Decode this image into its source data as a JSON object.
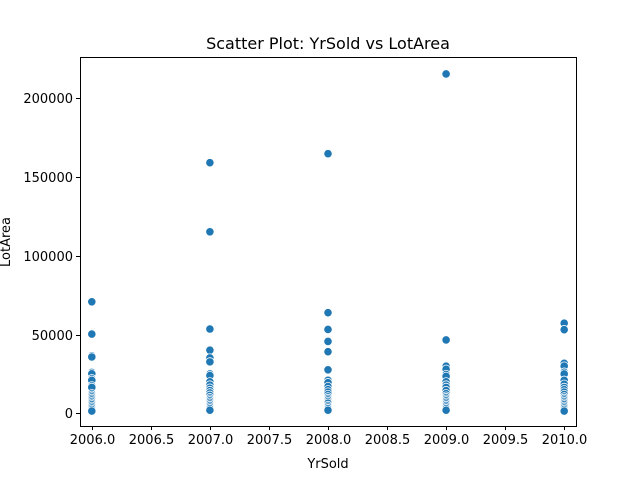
{
  "chart_data": {
    "type": "scatter",
    "title": "Scatter Plot: YrSold vs LotArea",
    "xlabel": "YrSold",
    "ylabel": "LotArea",
    "xlim": [
      2005.9,
      2010.1
    ],
    "ylim": [
      -8000,
      226000
    ],
    "x_ticks": [
      2006.0,
      2006.5,
      2007.0,
      2007.5,
      2008.0,
      2008.5,
      2009.0,
      2009.5,
      2010.0
    ],
    "x_tick_labels": [
      "2006.0",
      "2006.5",
      "2007.0",
      "2007.5",
      "2008.0",
      "2008.5",
      "2009.0",
      "2009.5",
      "2010.0"
    ],
    "y_ticks": [
      0,
      50000,
      100000,
      150000,
      200000
    ],
    "y_tick_labels": [
      "0",
      "50000",
      "100000",
      "150000",
      "200000"
    ],
    "grid": false,
    "legend": "none",
    "marker_color": "#1f77b4",
    "points": [
      {
        "x": 2006,
        "y": 70761
      },
      {
        "x": 2006,
        "y": 50271
      },
      {
        "x": 2006,
        "y": 36500
      },
      {
        "x": 2006,
        "y": 35760
      },
      {
        "x": 2006,
        "y": 26000
      },
      {
        "x": 2006,
        "y": 25095
      },
      {
        "x": 2006,
        "y": 22000
      },
      {
        "x": 2006,
        "y": 21000
      },
      {
        "x": 2006,
        "y": 17500
      },
      {
        "x": 2006,
        "y": 16500
      },
      {
        "x": 2006,
        "y": 12500
      },
      {
        "x": 2006,
        "y": 11500
      },
      {
        "x": 2006,
        "y": 10500
      },
      {
        "x": 2006,
        "y": 9500
      },
      {
        "x": 2006,
        "y": 8500
      },
      {
        "x": 2006,
        "y": 7500
      },
      {
        "x": 2006,
        "y": 6500
      },
      {
        "x": 2006,
        "y": 5500
      },
      {
        "x": 2006,
        "y": 4500
      },
      {
        "x": 2006,
        "y": 3500
      },
      {
        "x": 2006,
        "y": 2500
      },
      {
        "x": 2006,
        "y": 1500
      },
      {
        "x": 2007,
        "y": 159000
      },
      {
        "x": 2007,
        "y": 115149
      },
      {
        "x": 2007,
        "y": 53504
      },
      {
        "x": 2007,
        "y": 40094
      },
      {
        "x": 2007,
        "y": 35133
      },
      {
        "x": 2007,
        "y": 32668
      },
      {
        "x": 2007,
        "y": 25000
      },
      {
        "x": 2007,
        "y": 24000
      },
      {
        "x": 2007,
        "y": 20000
      },
      {
        "x": 2007,
        "y": 18000
      },
      {
        "x": 2007,
        "y": 16000
      },
      {
        "x": 2007,
        "y": 14500
      },
      {
        "x": 2007,
        "y": 13000
      },
      {
        "x": 2007,
        "y": 11500
      },
      {
        "x": 2007,
        "y": 10000
      },
      {
        "x": 2007,
        "y": 9000
      },
      {
        "x": 2007,
        "y": 8000
      },
      {
        "x": 2007,
        "y": 7000
      },
      {
        "x": 2007,
        "y": 6000
      },
      {
        "x": 2007,
        "y": 5000
      },
      {
        "x": 2007,
        "y": 4000
      },
      {
        "x": 2007,
        "y": 3000
      },
      {
        "x": 2007,
        "y": 2000
      },
      {
        "x": 2008,
        "y": 164660
      },
      {
        "x": 2008,
        "y": 63887
      },
      {
        "x": 2008,
        "y": 53227
      },
      {
        "x": 2008,
        "y": 45600
      },
      {
        "x": 2008,
        "y": 39104
      },
      {
        "x": 2008,
        "y": 27650
      },
      {
        "x": 2008,
        "y": 21000
      },
      {
        "x": 2008,
        "y": 19500
      },
      {
        "x": 2008,
        "y": 17000
      },
      {
        "x": 2008,
        "y": 15000
      },
      {
        "x": 2008,
        "y": 13500
      },
      {
        "x": 2008,
        "y": 12000
      },
      {
        "x": 2008,
        "y": 10500
      },
      {
        "x": 2008,
        "y": 9500
      },
      {
        "x": 2008,
        "y": 8500
      },
      {
        "x": 2008,
        "y": 7500
      },
      {
        "x": 2008,
        "y": 6500
      },
      {
        "x": 2008,
        "y": 5000
      },
      {
        "x": 2008,
        "y": 4000
      },
      {
        "x": 2008,
        "y": 3000
      },
      {
        "x": 2008,
        "y": 2000
      },
      {
        "x": 2009,
        "y": 215245
      },
      {
        "x": 2009,
        "y": 46589
      },
      {
        "x": 2009,
        "y": 29959
      },
      {
        "x": 2009,
        "y": 28000
      },
      {
        "x": 2009,
        "y": 24682
      },
      {
        "x": 2009,
        "y": 23500
      },
      {
        "x": 2009,
        "y": 20000
      },
      {
        "x": 2009,
        "y": 18000
      },
      {
        "x": 2009,
        "y": 16500
      },
      {
        "x": 2009,
        "y": 14500
      },
      {
        "x": 2009,
        "y": 12500
      },
      {
        "x": 2009,
        "y": 11000
      },
      {
        "x": 2009,
        "y": 10000
      },
      {
        "x": 2009,
        "y": 9000
      },
      {
        "x": 2009,
        "y": 8000
      },
      {
        "x": 2009,
        "y": 7000
      },
      {
        "x": 2009,
        "y": 6000
      },
      {
        "x": 2009,
        "y": 5000
      },
      {
        "x": 2009,
        "y": 4000
      },
      {
        "x": 2009,
        "y": 3000
      },
      {
        "x": 2009,
        "y": 2000
      },
      {
        "x": 2010,
        "y": 57200
      },
      {
        "x": 2010,
        "y": 53107
      },
      {
        "x": 2010,
        "y": 31770
      },
      {
        "x": 2010,
        "y": 30000
      },
      {
        "x": 2010,
        "y": 26142
      },
      {
        "x": 2010,
        "y": 25000
      },
      {
        "x": 2010,
        "y": 21000
      },
      {
        "x": 2010,
        "y": 18500
      },
      {
        "x": 2010,
        "y": 16500
      },
      {
        "x": 2010,
        "y": 15000
      },
      {
        "x": 2010,
        "y": 13500
      },
      {
        "x": 2010,
        "y": 12000
      },
      {
        "x": 2010,
        "y": 10500
      },
      {
        "x": 2010,
        "y": 9500
      },
      {
        "x": 2010,
        "y": 8500
      },
      {
        "x": 2010,
        "y": 7500
      },
      {
        "x": 2010,
        "y": 6500
      },
      {
        "x": 2010,
        "y": 5500
      },
      {
        "x": 2010,
        "y": 4500
      },
      {
        "x": 2010,
        "y": 3500
      },
      {
        "x": 2010,
        "y": 2500
      },
      {
        "x": 2010,
        "y": 1500
      }
    ]
  }
}
